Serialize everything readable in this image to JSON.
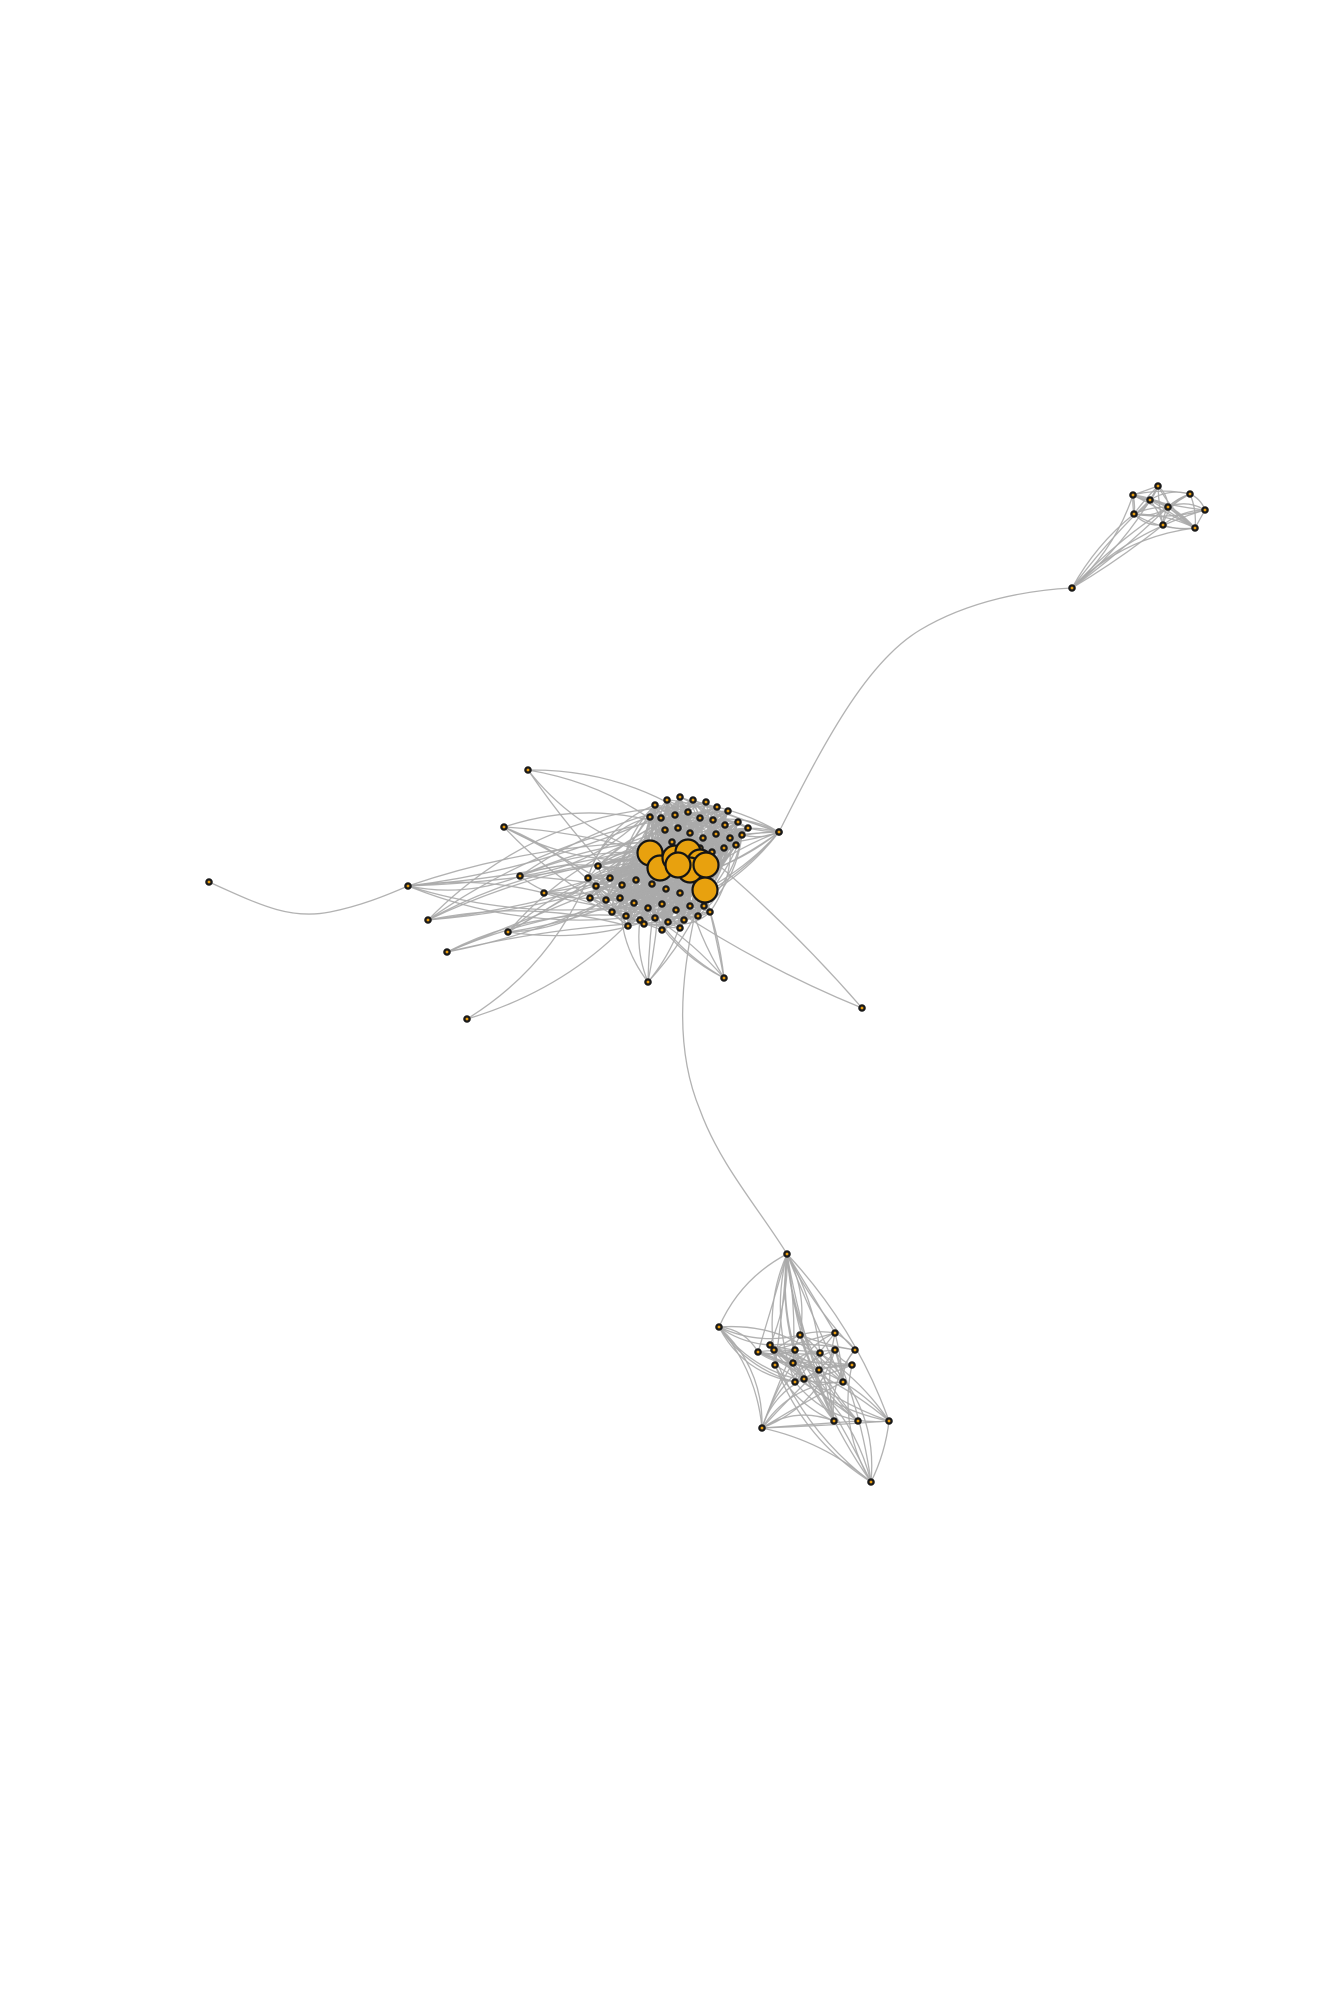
{
  "figure": {
    "type": "network-graph",
    "colors": {
      "background": "#ffffff",
      "edge": "#aaaaaa",
      "node_fill": "#e89c0f",
      "node_stroke": "#1a1a1a"
    },
    "clusters": [
      {
        "name": "central-cluster",
        "hub_nodes": 9,
        "peripheral_nodes": 62
      },
      {
        "name": "upper-right-cluster",
        "hub_nodes": 0,
        "peripheral_nodes": 9
      },
      {
        "name": "lower-cluster",
        "hub_nodes": 0,
        "peripheral_nodes": 22
      }
    ]
  }
}
